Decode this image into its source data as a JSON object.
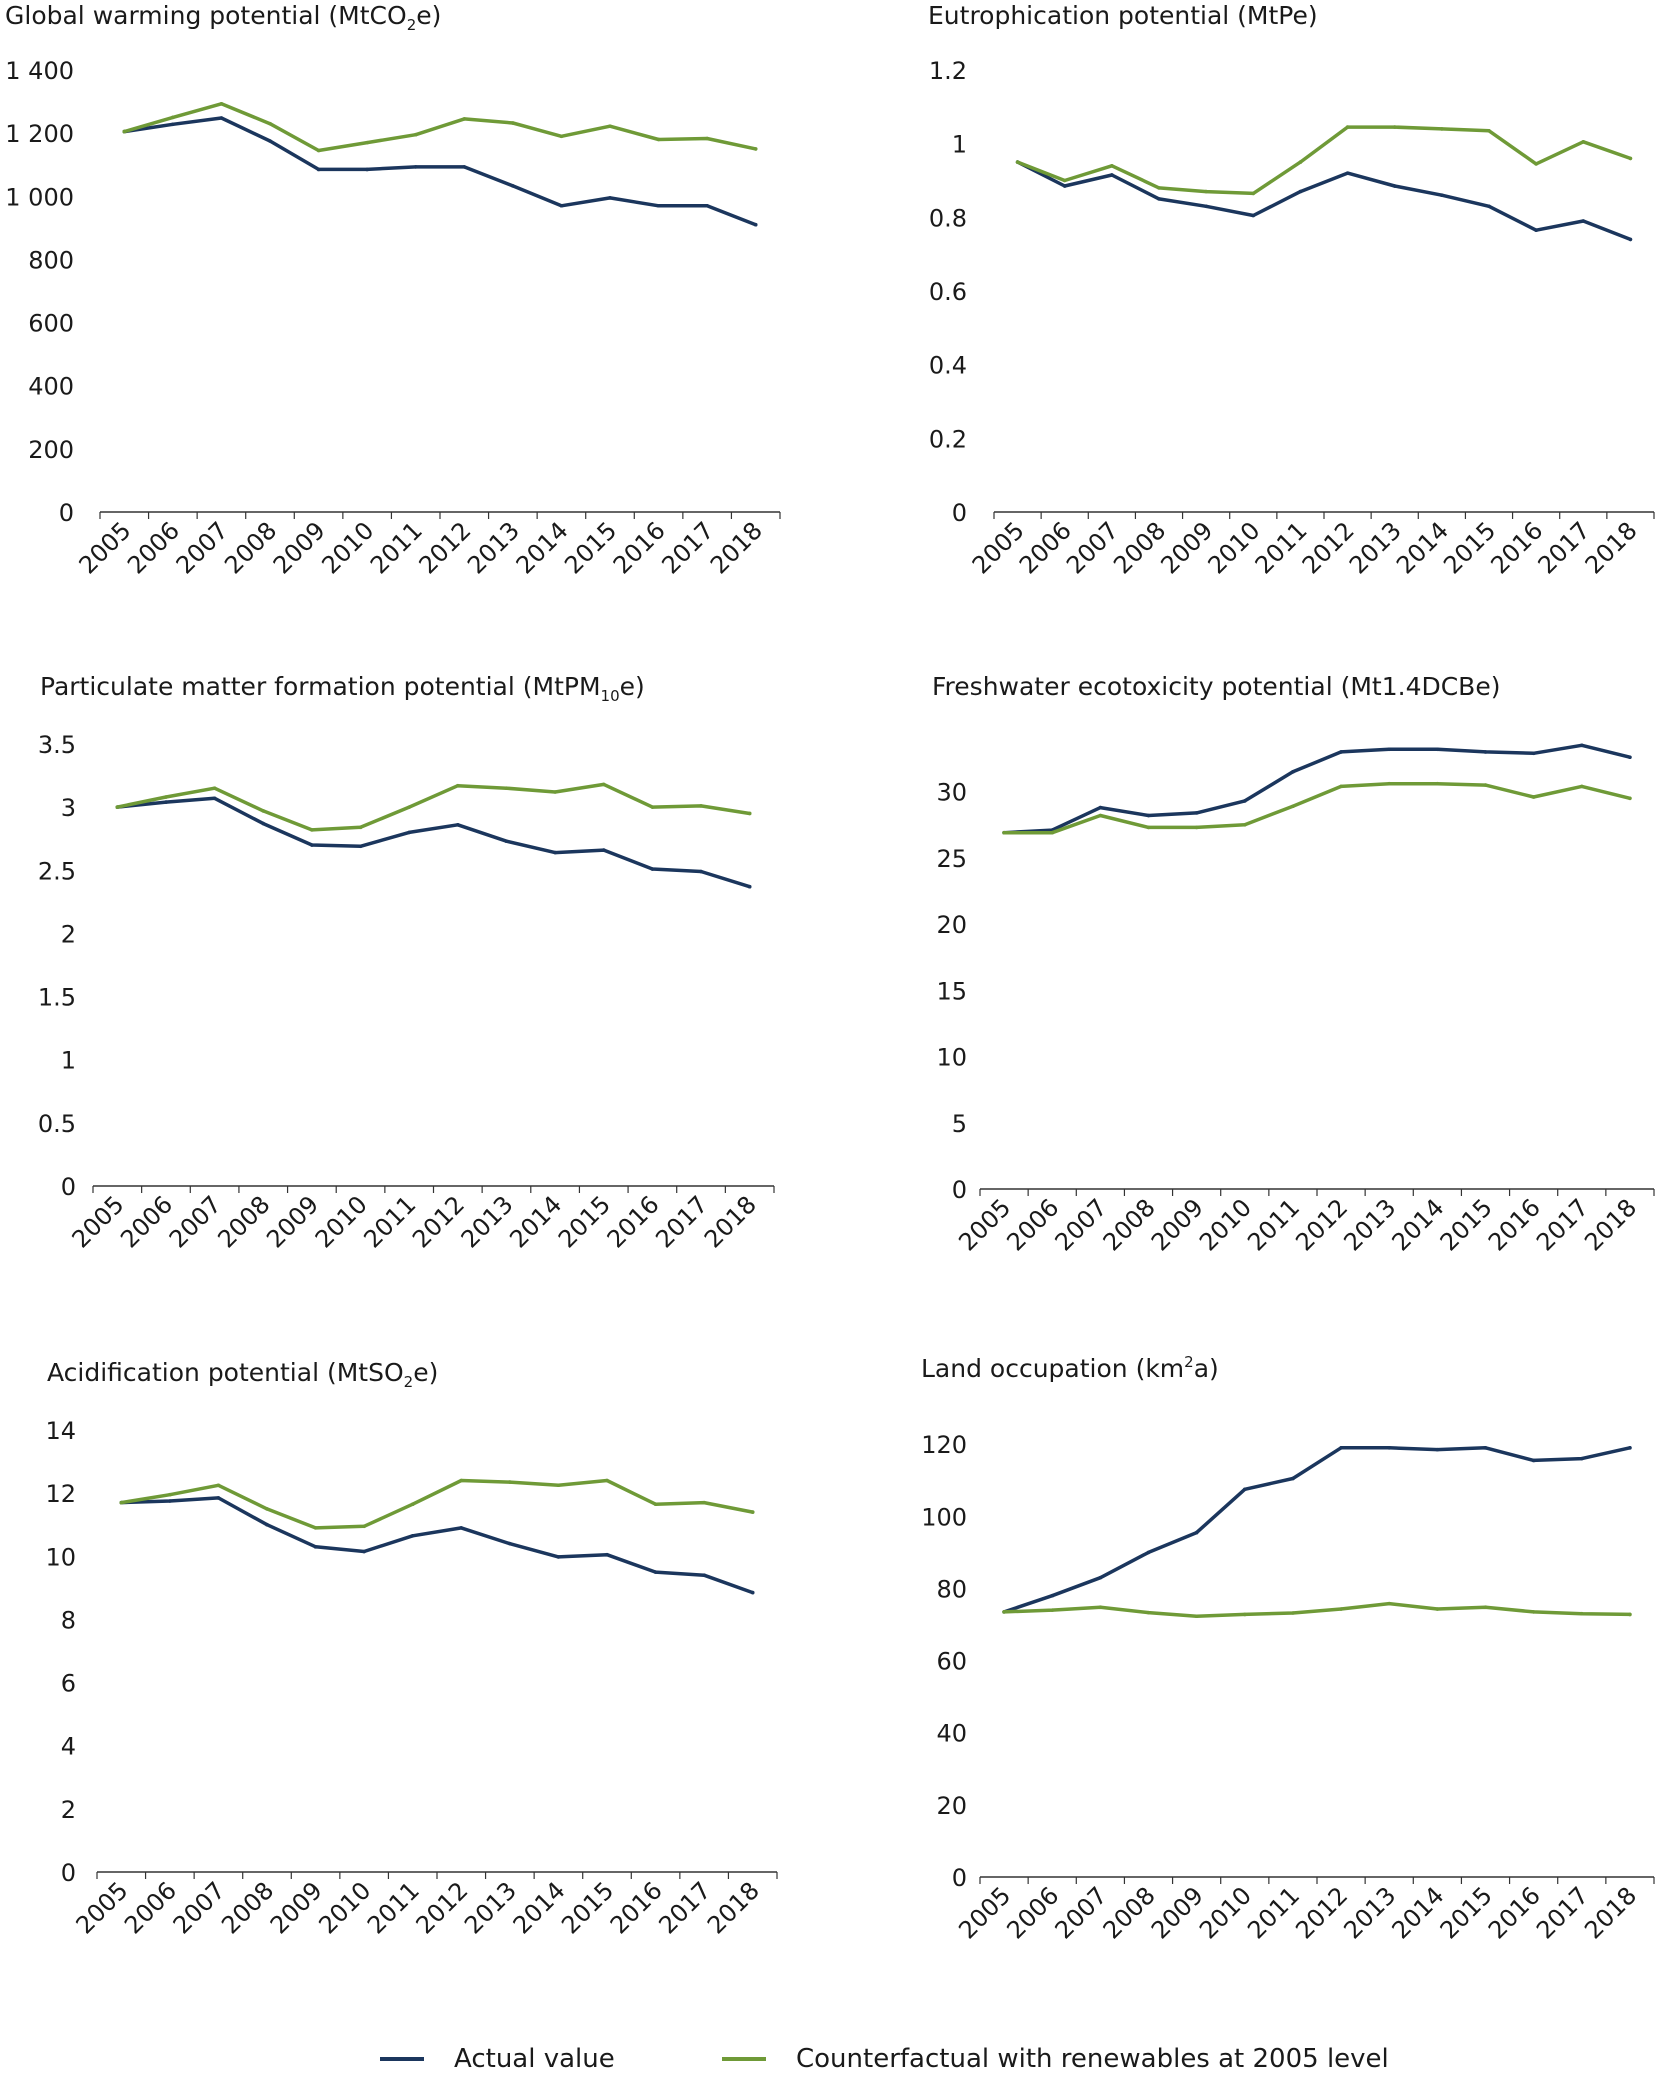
{
  "colors": {
    "actual": "#1b365d",
    "counterfactual": "#6f9a37",
    "axis": "#333333",
    "text": "#1a1a1a"
  },
  "legend": {
    "actual": "Actual value",
    "counterfactual": "Counterfactual with renewables at 2005 level"
  },
  "chart_data": [
    {
      "type": "line",
      "title": "Global warming potential (MtCO",
      "title_sub": "2",
      "title_end": "e)",
      "categories": [
        "2005",
        "2006",
        "2007",
        "2008",
        "2009",
        "2010",
        "2011",
        "2012",
        "2013",
        "2014",
        "2015",
        "2016",
        "2017",
        "2018"
      ],
      "yticks": [
        0,
        200,
        400,
        600,
        800,
        1000,
        1200,
        1400
      ],
      "ytick_labels": [
        "0",
        "200",
        "400",
        "600",
        "800",
        "1 000",
        "1 200",
        "1 400"
      ],
      "ylim": [
        0,
        1400
      ],
      "series": [
        {
          "key": "actual",
          "values": [
            1205,
            1228,
            1248,
            1175,
            1085,
            1085,
            1093,
            1093,
            1033,
            970,
            995,
            970,
            970,
            910
          ]
        },
        {
          "key": "counterfactual",
          "values": [
            1205,
            1250,
            1293,
            1230,
            1145,
            1170,
            1195,
            1245,
            1232,
            1190,
            1222,
            1180,
            1183,
            1150
          ]
        }
      ]
    },
    {
      "type": "line",
      "title": "Eutrophication potential (MtPe)",
      "title_sub": "",
      "title_end": "",
      "categories": [
        "2005",
        "2006",
        "2007",
        "2008",
        "2009",
        "2010",
        "2011",
        "2012",
        "2013",
        "2014",
        "2015",
        "2016",
        "2017",
        "2018"
      ],
      "yticks": [
        0,
        0.2,
        0.4,
        0.6,
        0.8,
        1,
        1.2
      ],
      "ytick_labels": [
        "0",
        "0.2",
        "0.4",
        "0.6",
        "0.8",
        "1",
        "1.2"
      ],
      "ylim": [
        0,
        1.2
      ],
      "series": [
        {
          "key": "actual",
          "values": [
            0.95,
            0.885,
            0.915,
            0.85,
            0.83,
            0.805,
            0.87,
            0.92,
            0.885,
            0.86,
            0.83,
            0.765,
            0.79,
            0.74
          ]
        },
        {
          "key": "counterfactual",
          "values": [
            0.95,
            0.9,
            0.94,
            0.88,
            0.87,
            0.865,
            0.95,
            1.045,
            1.045,
            1.04,
            1.035,
            0.945,
            1.005,
            0.96
          ]
        }
      ]
    },
    {
      "type": "line",
      "title": "Particulate matter formation potential (MtPM",
      "title_sub": "10",
      "title_end": "e)",
      "categories": [
        "2005",
        "2006",
        "2007",
        "2008",
        "2009",
        "2010",
        "2011",
        "2012",
        "2013",
        "2014",
        "2015",
        "2016",
        "2017",
        "2018"
      ],
      "yticks": [
        0,
        0.5,
        1,
        1.5,
        2,
        2.5,
        3,
        3.5
      ],
      "ytick_labels": [
        "0",
        "0.5",
        "1",
        "1.5",
        "2",
        "2.5",
        "3",
        "3.5"
      ],
      "ylim": [
        0,
        3.5
      ],
      "series": [
        {
          "key": "actual",
          "values": [
            3.0,
            3.04,
            3.07,
            2.87,
            2.7,
            2.69,
            2.8,
            2.86,
            2.73,
            2.64,
            2.66,
            2.51,
            2.49,
            2.37
          ]
        },
        {
          "key": "counterfactual",
          "values": [
            3.0,
            3.08,
            3.15,
            2.97,
            2.82,
            2.84,
            3.0,
            3.17,
            3.15,
            3.12,
            3.18,
            3.0,
            3.01,
            2.95
          ]
        }
      ]
    },
    {
      "type": "line",
      "title": "Freshwater ecotoxicity potential (Mt1.4DCBe)",
      "title_sub": "",
      "title_end": "",
      "categories": [
        "2005",
        "2006",
        "2007",
        "2008",
        "2009",
        "2010",
        "2011",
        "2012",
        "2013",
        "2014",
        "2015",
        "2016",
        "2017",
        "2018"
      ],
      "yticks": [
        0,
        5,
        10,
        15,
        20,
        25,
        30
      ],
      "ytick_labels": [
        "0",
        "5",
        "10",
        "15",
        "20",
        "25",
        "30"
      ],
      "ylim": [
        0,
        33.6
      ],
      "series": [
        {
          "key": "actual",
          "values": [
            26.9,
            27.1,
            28.8,
            28.2,
            28.4,
            29.3,
            31.5,
            33.0,
            33.2,
            33.2,
            33.0,
            32.9,
            33.5,
            32.6
          ]
        },
        {
          "key": "counterfactual",
          "values": [
            26.9,
            26.9,
            28.2,
            27.3,
            27.3,
            27.5,
            28.9,
            30.4,
            30.6,
            30.6,
            30.5,
            29.6,
            30.4,
            29.5
          ]
        }
      ]
    },
    {
      "type": "line",
      "title": "Acidification potential (MtSO",
      "title_sub": "2",
      "title_end": "e)",
      "categories": [
        "2005",
        "2006",
        "2007",
        "2008",
        "2009",
        "2010",
        "2011",
        "2012",
        "2013",
        "2014",
        "2015",
        "2016",
        "2017",
        "2018"
      ],
      "yticks": [
        0,
        2,
        4,
        6,
        8,
        10,
        12,
        14
      ],
      "ytick_labels": [
        "0",
        "2",
        "4",
        "6",
        "8",
        "10",
        "12",
        "14"
      ],
      "ylim": [
        0,
        14
      ],
      "series": [
        {
          "key": "actual",
          "values": [
            11.7,
            11.75,
            11.85,
            11.0,
            10.3,
            10.15,
            10.65,
            10.9,
            10.4,
            9.98,
            10.05,
            9.5,
            9.4,
            8.85
          ]
        },
        {
          "key": "counterfactual",
          "values": [
            11.7,
            11.95,
            12.25,
            11.5,
            10.9,
            10.95,
            11.65,
            12.4,
            12.35,
            12.25,
            12.4,
            11.65,
            11.7,
            11.4
          ]
        }
      ]
    },
    {
      "type": "line",
      "title": "Land occupation (km",
      "title_sup": "2",
      "title_end": "a)",
      "categories": [
        "2005",
        "2006",
        "2007",
        "2008",
        "2009",
        "2010",
        "2011",
        "2012",
        "2013",
        "2014",
        "2015",
        "2016",
        "2017",
        "2018"
      ],
      "yticks": [
        0,
        20,
        40,
        60,
        80,
        100,
        120
      ],
      "ytick_labels": [
        "0",
        "20",
        "40",
        "60",
        "80",
        "100",
        "120"
      ],
      "ylim": [
        0,
        122
      ],
      "series": [
        {
          "key": "actual",
          "values": [
            73.5,
            78,
            83,
            90,
            95.5,
            107.5,
            110.5,
            119,
            119,
            118.5,
            119,
            115.5,
            116,
            119
          ]
        },
        {
          "key": "counterfactual",
          "values": [
            73.5,
            74,
            74.8,
            73.3,
            72.3,
            72.8,
            73.2,
            74.3,
            75.8,
            74.3,
            74.8,
            73.5,
            73,
            72.8
          ]
        }
      ]
    }
  ]
}
